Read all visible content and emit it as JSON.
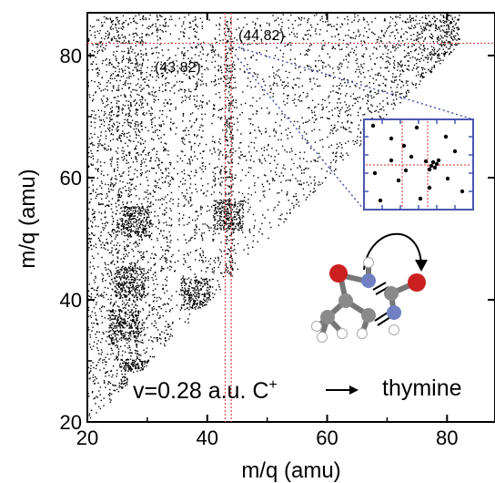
{
  "chart_data": {
    "type": "scatter",
    "xlabel": "m/q (amu)",
    "ylabel": "m/q (amu)",
    "xlim": [
      20,
      88
    ],
    "ylim": [
      20,
      87
    ],
    "xticks": [
      "20",
      "40",
      "60",
      "80"
    ],
    "yticks": [
      "20",
      "40",
      "60",
      "80"
    ],
    "grid": false,
    "annotations": [
      {
        "text": "(44,82)",
        "x": 44,
        "y": 82
      },
      {
        "text": "(43,82)",
        "x": 43,
        "y": 82
      }
    ],
    "guide_lines": {
      "vertical_x": [
        43,
        44
      ],
      "horizontal_y": [
        82
      ],
      "color": "#e05050"
    },
    "reaction_label": {
      "text_main": "v=0.28 a.u. C",
      "superscript": "+",
      "target": "thymine"
    },
    "density_regions": [
      {
        "x": 27,
        "y": 43
      },
      {
        "x": 28,
        "y": 53
      },
      {
        "x": 43.5,
        "y": 54
      },
      {
        "x": 28,
        "y": 28
      },
      {
        "x": 38,
        "y": 41
      },
      {
        "x": 26,
        "y": 36
      }
    ],
    "colors": {
      "points": "#000000",
      "guide": "#e05050",
      "inset_frame": "#4a56b0",
      "inset_grid": "#e05050",
      "oxygen": "#cc2020",
      "nitrogen": "#7080c0",
      "carbon": "#8a8a8a",
      "hydrogen": "#ffffff"
    }
  }
}
